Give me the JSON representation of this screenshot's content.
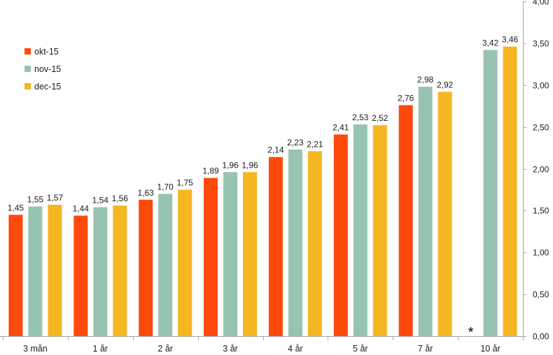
{
  "chart_data": {
    "type": "bar",
    "categories": [
      "3 mån",
      "1 år",
      "2 år",
      "3 år",
      "4 år",
      "5 år",
      "7 år",
      "10 år"
    ],
    "series": [
      {
        "name": "okt-15",
        "color": "#fe4a0c",
        "values": [
          1.45,
          1.44,
          1.63,
          1.89,
          2.14,
          2.41,
          2.76,
          null
        ],
        "labels": [
          "1,45",
          "1,44",
          "1,63",
          "1,89",
          "2,14",
          "2,41",
          "2,76",
          null
        ]
      },
      {
        "name": "nov-15",
        "color": "#97c4b1",
        "values": [
          1.55,
          1.54,
          1.7,
          1.96,
          2.23,
          2.53,
          2.98,
          3.42
        ],
        "labels": [
          "1,55",
          "1,54",
          "1,70",
          "1,96",
          "2,23",
          "2,53",
          "2,98",
          "3,42"
        ]
      },
      {
        "name": "dec-15",
        "color": "#f5b622",
        "values": [
          1.57,
          1.56,
          1.75,
          1.96,
          2.21,
          2.52,
          2.92,
          3.46
        ],
        "labels": [
          "1,57",
          "1,56",
          "1,75",
          "1,96",
          "2,21",
          "2,52",
          "2,92",
          "3,46"
        ]
      }
    ],
    "ylim": [
      0,
      4
    ],
    "yticks": [
      0,
      0.5,
      1,
      1.5,
      2,
      2.5,
      3,
      3.5,
      4
    ],
    "ytick_labels": [
      "0,00",
      "0,50",
      "1,00",
      "1,50",
      "2,00",
      "2,50",
      "3,00",
      "3,50",
      "4,00"
    ],
    "y_axis_side": "right",
    "grid": false,
    "legend_position": "top-left",
    "title": "",
    "xlabel": "",
    "ylabel": "",
    "annotations": [
      {
        "category": "10 år",
        "series": "okt-15",
        "text": "*"
      }
    ]
  }
}
